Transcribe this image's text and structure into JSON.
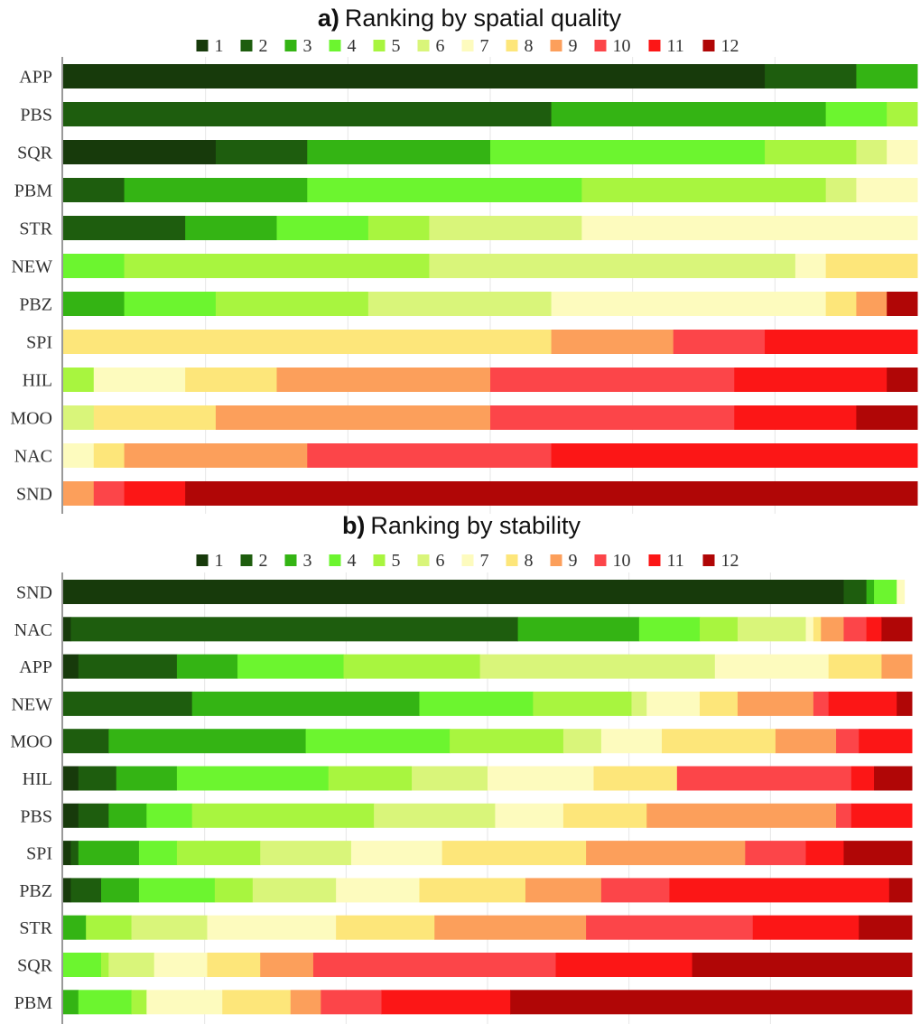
{
  "colors": [
    "#173a0b",
    "#1e5d0e",
    "#34b414",
    "#6cf52f",
    "#a8f53f",
    "#d9f57a",
    "#fdfbbe",
    "#fde67a",
    "#fc9f5b",
    "#fc4549",
    "#fc1616",
    "#b00606"
  ],
  "chart_data": [
    {
      "type": "bar",
      "orientation": "horizontal",
      "stacked": true,
      "title_prefix": "a)",
      "title": "Ranking by spatial quality",
      "legend": [
        "1",
        "2",
        "3",
        "4",
        "5",
        "6",
        "7",
        "8",
        "9",
        "10",
        "11",
        "12"
      ],
      "legend_position": "top",
      "categories": [
        "APP",
        "PBS",
        "SQR",
        "PBM",
        "STR",
        "NEW",
        "PBZ",
        "SPI",
        "HIL",
        "MOO",
        "NAC",
        "SND"
      ],
      "xlim": [
        0,
        28
      ],
      "grid": true,
      "values": [
        [
          23,
          3,
          2,
          0,
          0,
          0,
          0,
          0,
          0,
          0,
          0,
          0
        ],
        [
          0,
          16,
          9,
          2,
          1,
          0,
          0,
          0,
          0,
          0,
          0,
          0
        ],
        [
          5,
          3,
          6,
          9,
          3,
          1,
          1,
          0,
          0,
          0,
          0,
          0
        ],
        [
          0,
          2,
          6,
          9,
          8,
          1,
          2,
          0,
          0,
          0,
          0,
          0
        ],
        [
          0,
          4,
          3,
          3,
          2,
          5,
          11,
          0,
          0,
          0,
          0,
          0
        ],
        [
          0,
          0,
          0,
          2,
          10,
          12,
          1,
          3,
          0,
          0,
          0,
          0
        ],
        [
          0,
          0,
          2,
          3,
          5,
          6,
          9,
          1,
          1,
          0,
          0,
          1
        ],
        [
          0,
          0,
          0,
          0,
          0,
          0,
          0,
          16,
          4,
          3,
          5,
          0
        ],
        [
          0,
          0,
          0,
          0,
          1,
          0,
          3,
          3,
          7,
          8,
          5,
          1
        ],
        [
          0,
          0,
          0,
          0,
          0,
          1,
          0,
          4,
          9,
          8,
          4,
          2
        ],
        [
          0,
          0,
          0,
          0,
          0,
          0,
          1,
          1,
          6,
          8,
          12,
          0
        ],
        [
          0,
          0,
          0,
          0,
          0,
          0,
          0,
          0,
          1,
          1,
          2,
          24
        ]
      ]
    },
    {
      "type": "bar",
      "orientation": "horizontal",
      "stacked": true,
      "title_prefix": "b)",
      "title": "Ranking by stability",
      "legend": [
        "1",
        "2",
        "3",
        "4",
        "5",
        "6",
        "7",
        "8",
        "9",
        "10",
        "11",
        "12"
      ],
      "legend_position": "top",
      "categories": [
        "SND",
        "NAC",
        "APP",
        "NEW",
        "MOO",
        "HIL",
        "PBS",
        "SPI",
        "PBZ",
        "STR",
        "SQR",
        "PBM"
      ],
      "xlim": [
        0,
        112
      ],
      "grid": true,
      "values": [
        [
          103,
          3,
          1,
          3,
          0,
          0,
          1,
          0,
          0,
          0,
          0,
          0
        ],
        [
          1,
          59,
          16,
          8,
          5,
          9,
          1,
          1,
          3,
          3,
          2,
          4
        ],
        [
          2,
          13,
          8,
          14,
          18,
          31,
          15,
          7,
          4,
          0,
          0,
          0
        ],
        [
          0,
          17,
          30,
          15,
          13,
          2,
          7,
          5,
          10,
          2,
          9,
          2
        ],
        [
          0,
          6,
          26,
          19,
          15,
          5,
          8,
          15,
          8,
          3,
          7,
          0
        ],
        [
          2,
          5,
          8,
          20,
          11,
          10,
          14,
          11,
          0,
          23,
          3,
          5
        ],
        [
          2,
          4,
          5,
          6,
          24,
          16,
          9,
          11,
          25,
          2,
          8,
          0
        ],
        [
          1,
          1,
          8,
          5,
          11,
          12,
          12,
          19,
          21,
          8,
          5,
          9
        ],
        [
          1,
          4,
          5,
          10,
          5,
          11,
          11,
          14,
          10,
          9,
          29,
          3
        ],
        [
          0,
          0,
          3,
          0,
          6,
          10,
          17,
          13,
          20,
          22,
          14,
          7
        ],
        [
          0,
          0,
          0,
          5,
          1,
          6,
          7,
          7,
          7,
          32,
          18,
          29
        ],
        [
          0,
          0,
          2,
          7,
          2,
          0,
          10,
          9,
          4,
          8,
          17,
          53
        ]
      ]
    }
  ]
}
